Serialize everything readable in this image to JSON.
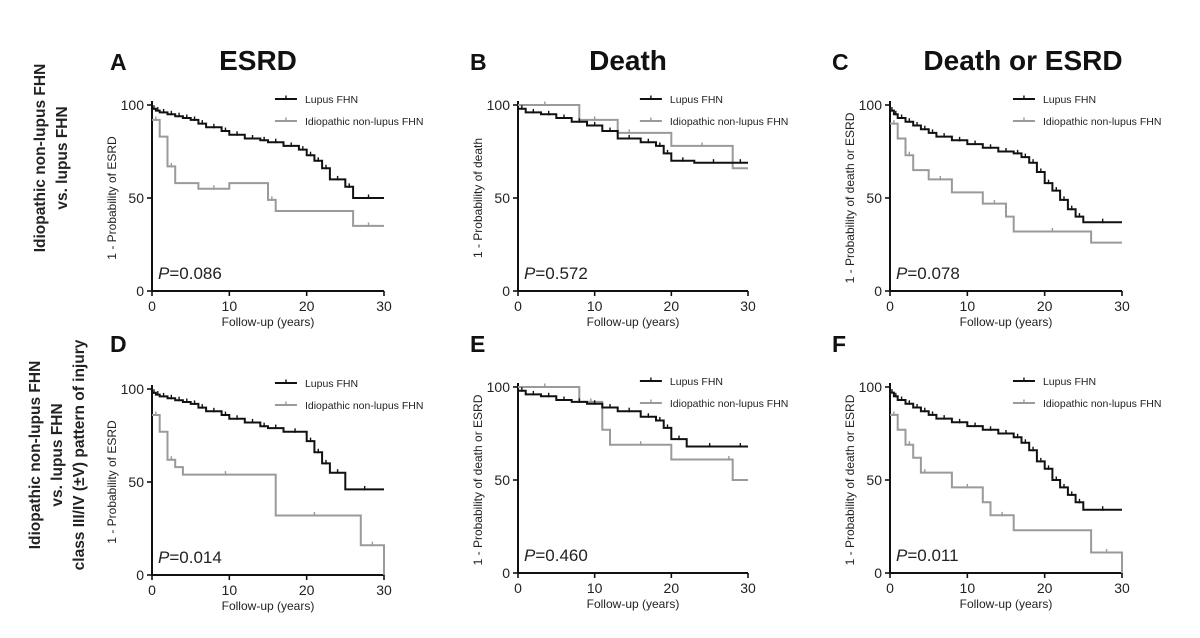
{
  "figure": {
    "row_labels": [
      {
        "lines": [
          "Idiopathic non-lupus FHN",
          "vs. lupus FHN"
        ]
      },
      {
        "lines": [
          "Idiopathic non-lupus FHN",
          "vs. lupus FHN",
          "class III/IV (±V) pattern of injury"
        ]
      }
    ],
    "colors": {
      "lupus": "#111111",
      "idiopathic": "#9a9a9a"
    }
  },
  "chart_data": [
    {
      "type": "line",
      "panel": "A",
      "title": "ESRD",
      "xlabel": "Follow-up (years)",
      "ylabel": "1 - Probability of ESRD",
      "xlim": [
        0,
        30
      ],
      "ylim": [
        0,
        100
      ],
      "xticks": [
        0,
        10,
        20,
        30
      ],
      "yticks": [
        0,
        50,
        100
      ],
      "p_prefix": "P",
      "p_value": "=0.086",
      "legend_position": "top-right",
      "series": [
        {
          "name": "Lupus FHN",
          "censor": true,
          "x": [
            0,
            0.5,
            1,
            2,
            3,
            4,
            5,
            6,
            7,
            9,
            10,
            12,
            14,
            15,
            17,
            19,
            20,
            21,
            22,
            23,
            25,
            26,
            30
          ],
          "y": [
            98,
            97,
            96,
            95,
            94,
            93,
            92,
            90,
            88,
            86,
            84,
            82,
            81,
            80,
            78,
            76,
            73,
            70,
            66,
            60,
            56,
            50,
            50
          ]
        },
        {
          "name": "Idiopathic non-lupus FHN",
          "censor": false,
          "x": [
            0,
            1,
            2,
            3,
            6,
            10,
            15,
            16,
            26,
            30
          ],
          "y": [
            92,
            83,
            67,
            58,
            55,
            58,
            49,
            43,
            35,
            35
          ]
        }
      ]
    },
    {
      "type": "line",
      "panel": "B",
      "title": "Death",
      "xlabel": "Follow-up (years)",
      "ylabel": "1 - Probability of death",
      "xlim": [
        0,
        30
      ],
      "ylim": [
        0,
        100
      ],
      "xticks": [
        0,
        10,
        20,
        30
      ],
      "yticks": [
        0,
        50,
        100
      ],
      "p_prefix": "P",
      "p_value": "=0.572",
      "legend_position": "top-right",
      "series": [
        {
          "name": "Lupus FHN",
          "censor": true,
          "x": [
            0,
            1,
            3,
            5,
            7,
            9,
            11,
            13,
            16,
            18,
            19,
            20,
            23,
            28,
            30
          ],
          "y": [
            98,
            96,
            95,
            93,
            91,
            89,
            86,
            82,
            80,
            78,
            74,
            70,
            69,
            69,
            69
          ]
        },
        {
          "name": "Idiopathic non-lupus FHN",
          "censor": false,
          "x": [
            0,
            7,
            8,
            12,
            13,
            16,
            20,
            28,
            30
          ],
          "y": [
            100,
            100,
            92,
            92,
            85,
            85,
            78,
            66,
            66
          ]
        }
      ]
    },
    {
      "type": "line",
      "panel": "C",
      "title": "Death or ESRD",
      "xlabel": "Follow-up (years)",
      "ylabel": "1 - Probability of death or ESRD",
      "xlim": [
        0,
        30
      ],
      "ylim": [
        0,
        100
      ],
      "xticks": [
        0,
        10,
        20,
        30
      ],
      "yticks": [
        0,
        50,
        100
      ],
      "p_prefix": "P",
      "p_value": "=0.078",
      "legend_position": "top-right",
      "series": [
        {
          "name": "Lupus FHN",
          "censor": true,
          "x": [
            0,
            0.5,
            1,
            2,
            3,
            4,
            5,
            6,
            8,
            10,
            12,
            14,
            16,
            17,
            18,
            19,
            20,
            21,
            22,
            23,
            24,
            25,
            30
          ],
          "y": [
            97,
            95,
            93,
            91,
            89,
            87,
            85,
            83,
            81,
            79,
            77,
            75,
            74,
            72,
            69,
            64,
            58,
            54,
            49,
            44,
            40,
            37,
            37
          ]
        },
        {
          "name": "Idiopathic non-lupus FHN",
          "censor": false,
          "x": [
            0,
            1,
            2,
            3,
            5,
            8,
            12,
            15,
            16,
            26,
            30
          ],
          "y": [
            90,
            82,
            73,
            65,
            60,
            53,
            47,
            40,
            32,
            26,
            26
          ]
        }
      ]
    },
    {
      "type": "line",
      "panel": "D",
      "title": "",
      "xlabel": "Follow-up (years)",
      "ylabel": "1 - Probability of ESRD",
      "xlim": [
        0,
        30
      ],
      "ylim": [
        0,
        100
      ],
      "xticks": [
        0,
        10,
        20,
        30
      ],
      "yticks": [
        0,
        50,
        100
      ],
      "p_prefix": "P",
      "p_value": "=0.014",
      "legend_position": "top-right",
      "series": [
        {
          "name": "Lupus FHN",
          "censor": true,
          "x": [
            0,
            0.5,
            1,
            2,
            3,
            4,
            5,
            6,
            7,
            9,
            10,
            12,
            14,
            15,
            17,
            20,
            21,
            22,
            23,
            25,
            30
          ],
          "y": [
            98,
            97,
            96,
            95,
            94,
            93,
            92,
            90,
            88,
            86,
            84,
            82,
            80,
            79,
            77,
            72,
            66,
            60,
            55,
            46,
            46
          ]
        },
        {
          "name": "Idiopathic non-lupus FHN",
          "censor": false,
          "x": [
            0,
            1,
            2,
            3,
            4,
            15,
            16,
            26,
            27,
            30
          ],
          "y": [
            86,
            77,
            62,
            58,
            54,
            54,
            32,
            32,
            16,
            0
          ]
        }
      ]
    },
    {
      "type": "line",
      "panel": "E",
      "title": "",
      "xlabel": "Follow-up (years)",
      "ylabel": "1 - Probability of death or ESRD",
      "xlim": [
        0,
        30
      ],
      "ylim": [
        0,
        100
      ],
      "xticks": [
        0,
        10,
        20,
        30
      ],
      "yticks": [
        0,
        50,
        100
      ],
      "p_prefix": "P",
      "p_value": "=0.460",
      "legend_position": "top-right",
      "series": [
        {
          "name": "Lupus FHN",
          "censor": true,
          "x": [
            0,
            1,
            3,
            5,
            7,
            9,
            11,
            13,
            16,
            18,
            19,
            20,
            22,
            28,
            30
          ],
          "y": [
            98,
            96,
            95,
            93,
            92,
            91,
            89,
            87,
            84,
            82,
            78,
            72,
            68,
            68,
            68
          ]
        },
        {
          "name": "Idiopathic non-lupus FHN",
          "censor": false,
          "x": [
            0,
            7,
            8,
            11,
            12,
            20,
            27,
            28,
            30
          ],
          "y": [
            100,
            100,
            92,
            77,
            69,
            61,
            61,
            50,
            50
          ]
        }
      ]
    },
    {
      "type": "line",
      "panel": "F",
      "title": "",
      "xlabel": "Follow-up (years)",
      "ylabel": "1 - Probability of death or ESRD",
      "xlim": [
        0,
        30
      ],
      "ylim": [
        0,
        100
      ],
      "xticks": [
        0,
        10,
        20,
        30
      ],
      "yticks": [
        0,
        50,
        100
      ],
      "p_prefix": "P",
      "p_value": "=0.011",
      "legend_position": "top-right",
      "series": [
        {
          "name": "Lupus FHN",
          "censor": true,
          "x": [
            0,
            0.5,
            1,
            2,
            3,
            4,
            5,
            6,
            8,
            10,
            12,
            14,
            16,
            17,
            18,
            19,
            20,
            21,
            22,
            23,
            24,
            25,
            30
          ],
          "y": [
            97,
            95,
            93,
            91,
            89,
            87,
            85,
            83,
            81,
            79,
            77,
            75,
            73,
            70,
            66,
            60,
            56,
            50,
            46,
            42,
            38,
            34,
            34
          ]
        },
        {
          "name": "Idiopathic non-lupus FHN",
          "censor": false,
          "x": [
            0,
            1,
            2,
            3,
            4,
            5,
            8,
            12,
            13,
            16,
            26,
            30
          ],
          "y": [
            85,
            77,
            69,
            62,
            54,
            54,
            46,
            38,
            31,
            23,
            11,
            0
          ]
        }
      ]
    }
  ]
}
